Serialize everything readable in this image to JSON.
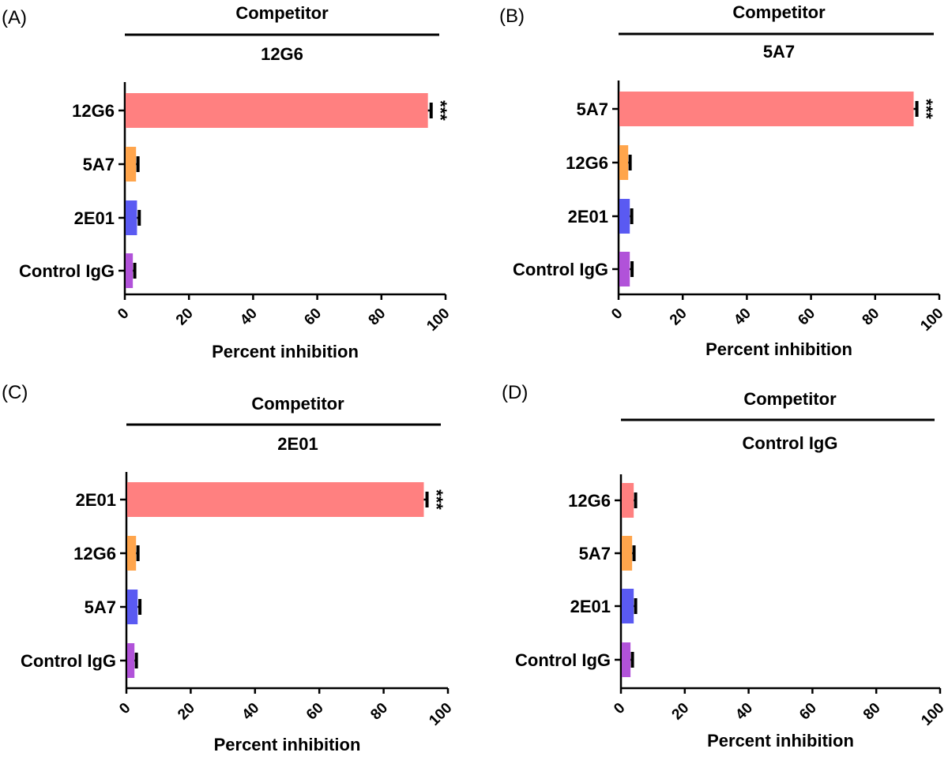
{
  "chart_data": [
    {
      "type": "bar",
      "orientation": "horizontal",
      "panel": "(A)",
      "header": "Competitor",
      "subheader": "12G6",
      "categories": [
        "12G6",
        "5A7",
        "2E01",
        "Control IgG"
      ],
      "values": [
        94.5,
        3.5,
        3.8,
        2.5
      ],
      "errors": [
        1.0,
        0.6,
        0.7,
        0.6
      ],
      "colors": [
        "#ff8080",
        "#ffa54c",
        "#5a5af2",
        "#b152d9"
      ],
      "annotations": [
        "***",
        "",
        "",
        ""
      ],
      "xlabel": "Percent inhibition",
      "xlim": [
        0,
        100
      ],
      "xticks": [
        "0",
        "20",
        "40",
        "60",
        "80",
        "100"
      ]
    },
    {
      "type": "bar",
      "orientation": "horizontal",
      "panel": "(B)",
      "header": "Competitor",
      "subheader": "5A7",
      "categories": [
        "5A7",
        "12G6",
        "2E01",
        "Control IgG"
      ],
      "values": [
        92,
        3.0,
        3.5,
        3.5
      ],
      "errors": [
        1.0,
        0.6,
        0.6,
        0.7
      ],
      "colors": [
        "#ff8080",
        "#ffa54c",
        "#5a5af2",
        "#b152d9"
      ],
      "annotations": [
        "***",
        "",
        "",
        ""
      ],
      "xlabel": "Percent inhibition",
      "xlim": [
        0,
        100
      ],
      "xticks": [
        "0",
        "20",
        "40",
        "60",
        "80",
        "100"
      ]
    },
    {
      "type": "bar",
      "orientation": "horizontal",
      "panel": "(C)",
      "header": "Competitor",
      "subheader": "2E01",
      "categories": [
        "2E01",
        "12G6",
        "5A7",
        "Control IgG"
      ],
      "values": [
        92.5,
        3.0,
        3.5,
        2.5
      ],
      "errors": [
        1.0,
        0.6,
        0.7,
        0.6
      ],
      "colors": [
        "#ff8080",
        "#ffa54c",
        "#5a5af2",
        "#b152d9"
      ],
      "annotations": [
        "***",
        "",
        "",
        ""
      ],
      "xlabel": "Percent inhibition",
      "xlim": [
        0,
        100
      ],
      "xticks": [
        "0",
        "20",
        "40",
        "60",
        "80",
        "100"
      ]
    },
    {
      "type": "bar",
      "orientation": "horizontal",
      "panel": "(D)",
      "header": "Competitor",
      "subheader": "Control IgG",
      "categories": [
        "12G6",
        "5A7",
        "2E01",
        "Control IgG"
      ],
      "values": [
        4.0,
        3.5,
        4.0,
        3.0
      ],
      "errors": [
        0.6,
        0.6,
        0.6,
        0.6
      ],
      "colors": [
        "#ff8080",
        "#ffa54c",
        "#5a5af2",
        "#b152d9"
      ],
      "annotations": [
        "",
        "",
        "",
        ""
      ],
      "xlabel": "Percent inhibition",
      "xlim": [
        0,
        100
      ],
      "xticks": [
        "0",
        "20",
        "40",
        "60",
        "80",
        "100"
      ]
    }
  ]
}
